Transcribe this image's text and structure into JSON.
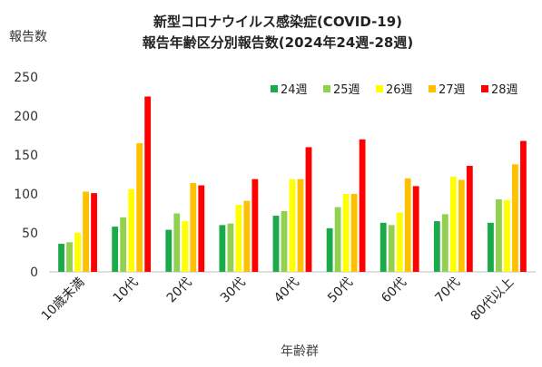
{
  "chart_data": {
    "type": "bar",
    "title_line1": "新型コロナウイルス感染症(COVID-19)",
    "title_line2": "報告年齢区分別報告数(2024年24週-28週)",
    "ylabel": "報告数",
    "xlabel": "年齢群",
    "ylim": [
      0,
      250
    ],
    "yticks": [
      0,
      50,
      100,
      150,
      200,
      250
    ],
    "categories": [
      "10歳未満",
      "10代",
      "20代",
      "30代",
      "40代",
      "50代",
      "60代",
      "70代",
      "80代以上"
    ],
    "series": [
      {
        "name": "24週",
        "color": "#1aaa4a",
        "values": [
          36,
          58,
          54,
          60,
          72,
          56,
          63,
          65,
          63
        ]
      },
      {
        "name": "25週",
        "color": "#92d050",
        "values": [
          38,
          70,
          75,
          62,
          78,
          83,
          60,
          74,
          93
        ]
      },
      {
        "name": "26週",
        "color": "#ffff00",
        "values": [
          50,
          106,
          65,
          86,
          119,
          100,
          76,
          122,
          92
        ]
      },
      {
        "name": "27週",
        "color": "#ffc000",
        "values": [
          103,
          165,
          114,
          91,
          119,
          100,
          120,
          118,
          138
        ]
      },
      {
        "name": "28週",
        "color": "#ff0000",
        "values": [
          101,
          225,
          111,
          119,
          160,
          170,
          110,
          136,
          168
        ]
      }
    ],
    "grid": false,
    "legend": "top-right"
  }
}
